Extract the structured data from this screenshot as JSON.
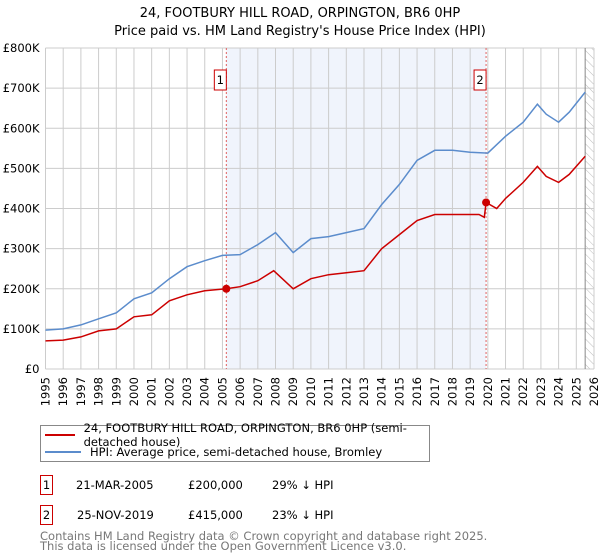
{
  "chart_data": {
    "type": "line",
    "title": "24, FOOTBURY HILL ROAD, ORPINGTON, BR6 0HP",
    "subtitle": "Price paid vs. HM Land Registry's House Price Index (HPI)",
    "xlim": [
      1995,
      2026
    ],
    "ylim": [
      0,
      800000
    ],
    "y_ticks": [
      {
        "v": 0,
        "label": "£0"
      },
      {
        "v": 100000,
        "label": "£100K"
      },
      {
        "v": 200000,
        "label": "£200K"
      },
      {
        "v": 300000,
        "label": "£300K"
      },
      {
        "v": 400000,
        "label": "£400K"
      },
      {
        "v": 500000,
        "label": "£500K"
      },
      {
        "v": 600000,
        "label": "£600K"
      },
      {
        "v": 700000,
        "label": "£700K"
      },
      {
        "v": 800000,
        "label": "£800K"
      }
    ],
    "x_ticks": [
      "1995",
      "1996",
      "1997",
      "1998",
      "1999",
      "2000",
      "2001",
      "2002",
      "2003",
      "2004",
      "2005",
      "2006",
      "2007",
      "2008",
      "2009",
      "2010",
      "2011",
      "2012",
      "2013",
      "2014",
      "2015",
      "2016",
      "2017",
      "2018",
      "2019",
      "2020",
      "2021",
      "2022",
      "2023",
      "2024",
      "2025",
      "2026"
    ],
    "shaded_range": [
      2005.22,
      2019.9
    ],
    "forecast_from": 2025.5,
    "series": [
      {
        "name": "24, FOOTBURY HILL ROAD, ORPINGTON, BR6 0HP (semi-detached house)",
        "color": "#cc0000",
        "x": [
          1995,
          1996,
          1997,
          1998,
          1999,
          2000,
          2001,
          2002,
          2003,
          2004,
          2005.22,
          2006,
          2007,
          2007.9,
          2009,
          2010,
          2011,
          2012,
          2013,
          2014,
          2015,
          2016,
          2017,
          2018,
          2019.5,
          2019.8,
          2019.9,
          2020.5,
          2021,
          2022,
          2022.8,
          2023.3,
          2024,
          2024.6,
          2025.5
        ],
        "y": [
          70000,
          72000,
          80000,
          95000,
          100000,
          130000,
          135000,
          170000,
          185000,
          195000,
          200000,
          205000,
          220000,
          245000,
          200000,
          225000,
          235000,
          240000,
          245000,
          300000,
          335000,
          370000,
          385000,
          385000,
          385000,
          378000,
          415000,
          400000,
          425000,
          465000,
          505000,
          480000,
          465000,
          485000,
          530000
        ]
      },
      {
        "name": "HPI: Average price, semi-detached house, Bromley",
        "color": "#5b8ccc",
        "x": [
          1995,
          1996,
          1997,
          1998,
          1999,
          2000,
          2001,
          2002,
          2003,
          2004,
          2005,
          2006,
          2007,
          2008,
          2009,
          2010,
          2011,
          2012,
          2013,
          2014,
          2015,
          2016,
          2017,
          2018,
          2019,
          2020,
          2021,
          2022,
          2022.8,
          2023.3,
          2024,
          2024.6,
          2025.5
        ],
        "y": [
          97000,
          100000,
          110000,
          125000,
          140000,
          175000,
          190000,
          225000,
          255000,
          270000,
          283000,
          285000,
          310000,
          340000,
          290000,
          325000,
          330000,
          340000,
          350000,
          410000,
          460000,
          520000,
          545000,
          545000,
          540000,
          538000,
          580000,
          615000,
          660000,
          635000,
          615000,
          640000,
          690000
        ]
      }
    ],
    "annotations": [
      {
        "label": "1",
        "x": 2005.22,
        "y": 200000
      },
      {
        "label": "2",
        "x": 2019.9,
        "y": 415000
      }
    ]
  },
  "legend": [
    "24, FOOTBURY HILL ROAD, ORPINGTON, BR6 0HP (semi-detached house)",
    "HPI: Average price, semi-detached house, Bromley"
  ],
  "transactions": [
    {
      "n": "1",
      "date": "21-MAR-2005",
      "price": "£200,000",
      "hpi": "29% ↓ HPI"
    },
    {
      "n": "2",
      "date": "25-NOV-2019",
      "price": "£415,000",
      "hpi": "23% ↓ HPI"
    }
  ],
  "footer": [
    "Contains HM Land Registry data © Crown copyright and database right 2025.",
    "This data is licensed under the Open Government Licence v3.0."
  ]
}
